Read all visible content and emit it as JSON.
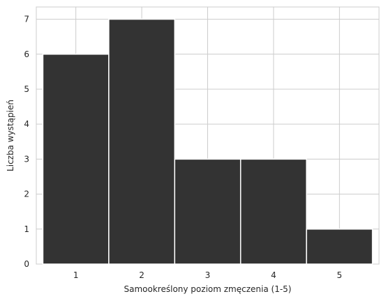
{
  "chart_data": {
    "type": "bar",
    "title": "",
    "xlabel": "Samookreślony poziom zmęczenia (1-5)",
    "ylabel": "Liczba wystąpień",
    "categories": [
      "1",
      "2",
      "3",
      "4",
      "5"
    ],
    "values": [
      6,
      7,
      3,
      3,
      1
    ],
    "yticks": [
      "0",
      "1",
      "2",
      "3",
      "4",
      "5",
      "6",
      "7"
    ],
    "ylim": [
      0,
      7.35
    ],
    "xlim": [
      0.4,
      5.6
    ],
    "grid": true,
    "bar_color": "#333333",
    "bar_edge_color": "#ffffff",
    "grid_color": "#cccccc",
    "background": "#ffffff"
  }
}
